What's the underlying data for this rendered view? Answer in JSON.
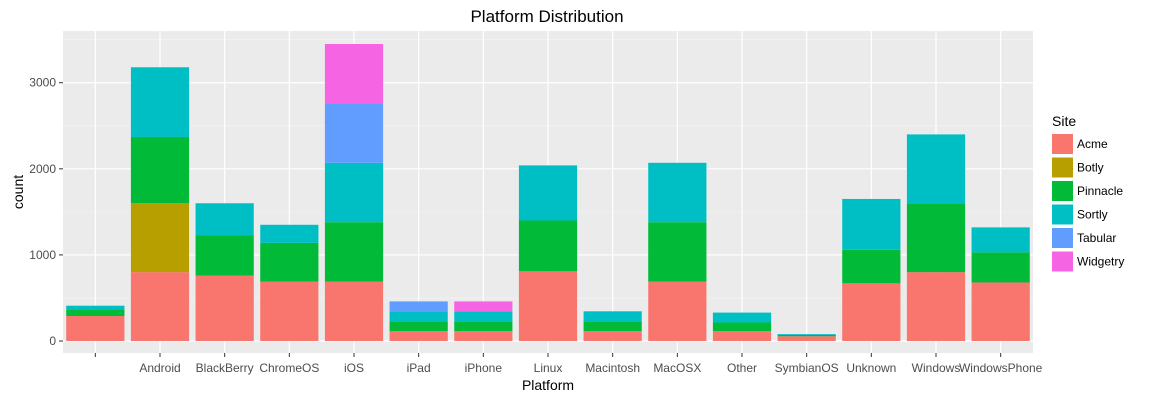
{
  "chart_data": {
    "type": "bar",
    "stacked": true,
    "title": "Platform Distribution",
    "xlabel": "Platform",
    "ylabel": "count",
    "ylim": [
      0,
      3500
    ],
    "yticks": [
      0,
      1000,
      2000,
      3000
    ],
    "grid": true,
    "legend_position": "right",
    "legend_title": "Site",
    "categories": [
      "",
      "Android",
      "BlackBerry",
      "ChromeOS",
      "iOS",
      "iPad",
      "iPhone",
      "Linux",
      "Macintosh",
      "MacOSX",
      "Other",
      "SymbianOS",
      "Unknown",
      "Windows",
      "WindowsPhone"
    ],
    "series": [
      {
        "name": "Acme",
        "color": "#F8766D",
        "values": [
          290,
          800,
          760,
          690,
          690,
          115,
          115,
          810,
          115,
          690,
          115,
          55,
          670,
          800,
          680
        ]
      },
      {
        "name": "Botly",
        "color": "#B79F00",
        "values": [
          0,
          800,
          0,
          0,
          0,
          0,
          0,
          0,
          0,
          0,
          0,
          0,
          0,
          0,
          0
        ]
      },
      {
        "name": "Pinnacle",
        "color": "#00BA38",
        "values": [
          75,
          770,
          470,
          450,
          690,
          115,
          115,
          590,
          115,
          690,
          100,
          15,
          390,
          800,
          350
        ]
      },
      {
        "name": "Sortly",
        "color": "#00BFC4",
        "values": [
          45,
          810,
          370,
          210,
          690,
          115,
          115,
          640,
          115,
          690,
          115,
          10,
          590,
          800,
          290
        ]
      },
      {
        "name": "Tabular",
        "color": "#619CFF",
        "values": [
          0,
          0,
          0,
          0,
          690,
          115,
          0,
          0,
          0,
          0,
          0,
          0,
          0,
          0,
          0
        ]
      },
      {
        "name": "Widgetry",
        "color": "#F564E3",
        "values": [
          0,
          0,
          0,
          0,
          690,
          0,
          115,
          0,
          0,
          0,
          0,
          0,
          0,
          0,
          0
        ]
      }
    ]
  }
}
